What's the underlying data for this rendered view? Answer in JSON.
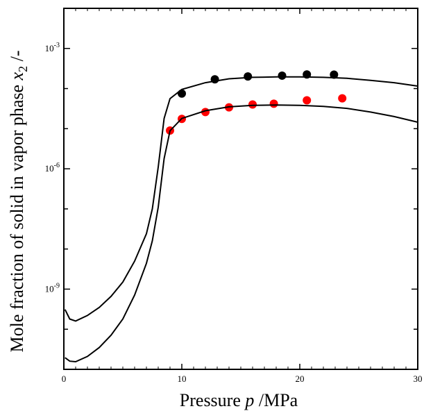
{
  "chart_data": {
    "type": "scatter",
    "xlabel": {
      "prefix": "Pressure ",
      "var": "p",
      "suffix": " /MPa"
    },
    "ylabel": {
      "prefix": "Mole fraction of solid in vapor phase ",
      "var": "x",
      "sub": "2",
      "suffix": " /-"
    },
    "xlim": [
      0,
      30
    ],
    "ylim_log10": [
      -11,
      -2
    ],
    "y_scale": "log",
    "grid": false,
    "x_ticks": [
      0,
      10,
      20,
      30
    ],
    "x_tick_labels": [
      "0",
      "10",
      "20",
      "30"
    ],
    "y_major_exp": [
      -9,
      -6,
      -3
    ],
    "y_major_labels": [
      {
        "base": "10",
        "exp": "-9"
      },
      {
        "base": "10",
        "exp": "-6"
      },
      {
        "base": "10",
        "exp": "-3"
      }
    ],
    "series": [
      {
        "kind": "points",
        "color": "#000000",
        "points": [
          [
            10.0,
            7.5e-05
          ],
          [
            12.8,
            0.00017
          ],
          [
            15.6,
            0.0002
          ],
          [
            18.5,
            0.00021
          ],
          [
            20.6,
            0.000225
          ],
          [
            22.9,
            0.000222
          ]
        ]
      },
      {
        "kind": "points",
        "color": "#ff0000",
        "points": [
          [
            9.0,
            9e-06
          ],
          [
            10.0,
            1.75e-05
          ],
          [
            12.0,
            2.6e-05
          ],
          [
            14.0,
            3.4e-05
          ],
          [
            16.0,
            4e-05
          ],
          [
            17.8,
            4.2e-05
          ],
          [
            20.6,
            5.1e-05
          ],
          [
            23.6,
            5.7e-05
          ]
        ]
      },
      {
        "kind": "line",
        "color": "#000000",
        "points": [
          [
            0.1,
            3.1e-10
          ],
          [
            0.5,
            1.8e-10
          ],
          [
            1.0,
            1.6e-10
          ],
          [
            2.0,
            2.2e-10
          ],
          [
            3.0,
            3.5e-10
          ],
          [
            4.0,
            6.6e-10
          ],
          [
            5.0,
            1.5e-09
          ],
          [
            6.0,
            5e-09
          ],
          [
            7.0,
            2.4e-08
          ],
          [
            7.5,
            1e-07
          ],
          [
            8.0,
            1.1e-06
          ],
          [
            8.5,
            1.8e-05
          ],
          [
            9.0,
            5.6e-05
          ],
          [
            10.0,
            9.5e-05
          ],
          [
            12.0,
            0.00014
          ],
          [
            14.0,
            0.000175
          ],
          [
            16.0,
            0.00019
          ],
          [
            18.0,
            0.000195
          ],
          [
            20.0,
            0.000195
          ],
          [
            22.0,
            0.00019
          ],
          [
            24.0,
            0.00018
          ],
          [
            26.0,
            0.00016
          ],
          [
            28.0,
            0.00014
          ],
          [
            30.0,
            0.000115
          ]
        ]
      },
      {
        "kind": "line",
        "color": "#000000",
        "points": [
          [
            0.1,
            1.95e-11
          ],
          [
            0.5,
            1.6e-11
          ],
          [
            1.0,
            1.55e-11
          ],
          [
            2.0,
            2.1e-11
          ],
          [
            3.0,
            3.5e-11
          ],
          [
            4.0,
            7.1e-11
          ],
          [
            5.0,
            1.8e-10
          ],
          [
            6.0,
            7.1e-10
          ],
          [
            7.0,
            4.4e-09
          ],
          [
            7.5,
            1.6e-08
          ],
          [
            8.0,
            1.1e-07
          ],
          [
            8.5,
            1.8e-06
          ],
          [
            9.0,
            8.9e-06
          ],
          [
            10.0,
            1.8e-05
          ],
          [
            12.0,
            2.8e-05
          ],
          [
            14.0,
            3.5e-05
          ],
          [
            16.0,
            3.8e-05
          ],
          [
            18.0,
            3.9e-05
          ],
          [
            20.0,
            3.8e-05
          ],
          [
            22.0,
            3.6e-05
          ],
          [
            24.0,
            3.2e-05
          ],
          [
            26.0,
            2.6e-05
          ],
          [
            28.0,
            2e-05
          ],
          [
            30.0,
            1.45e-05
          ]
        ]
      }
    ]
  }
}
